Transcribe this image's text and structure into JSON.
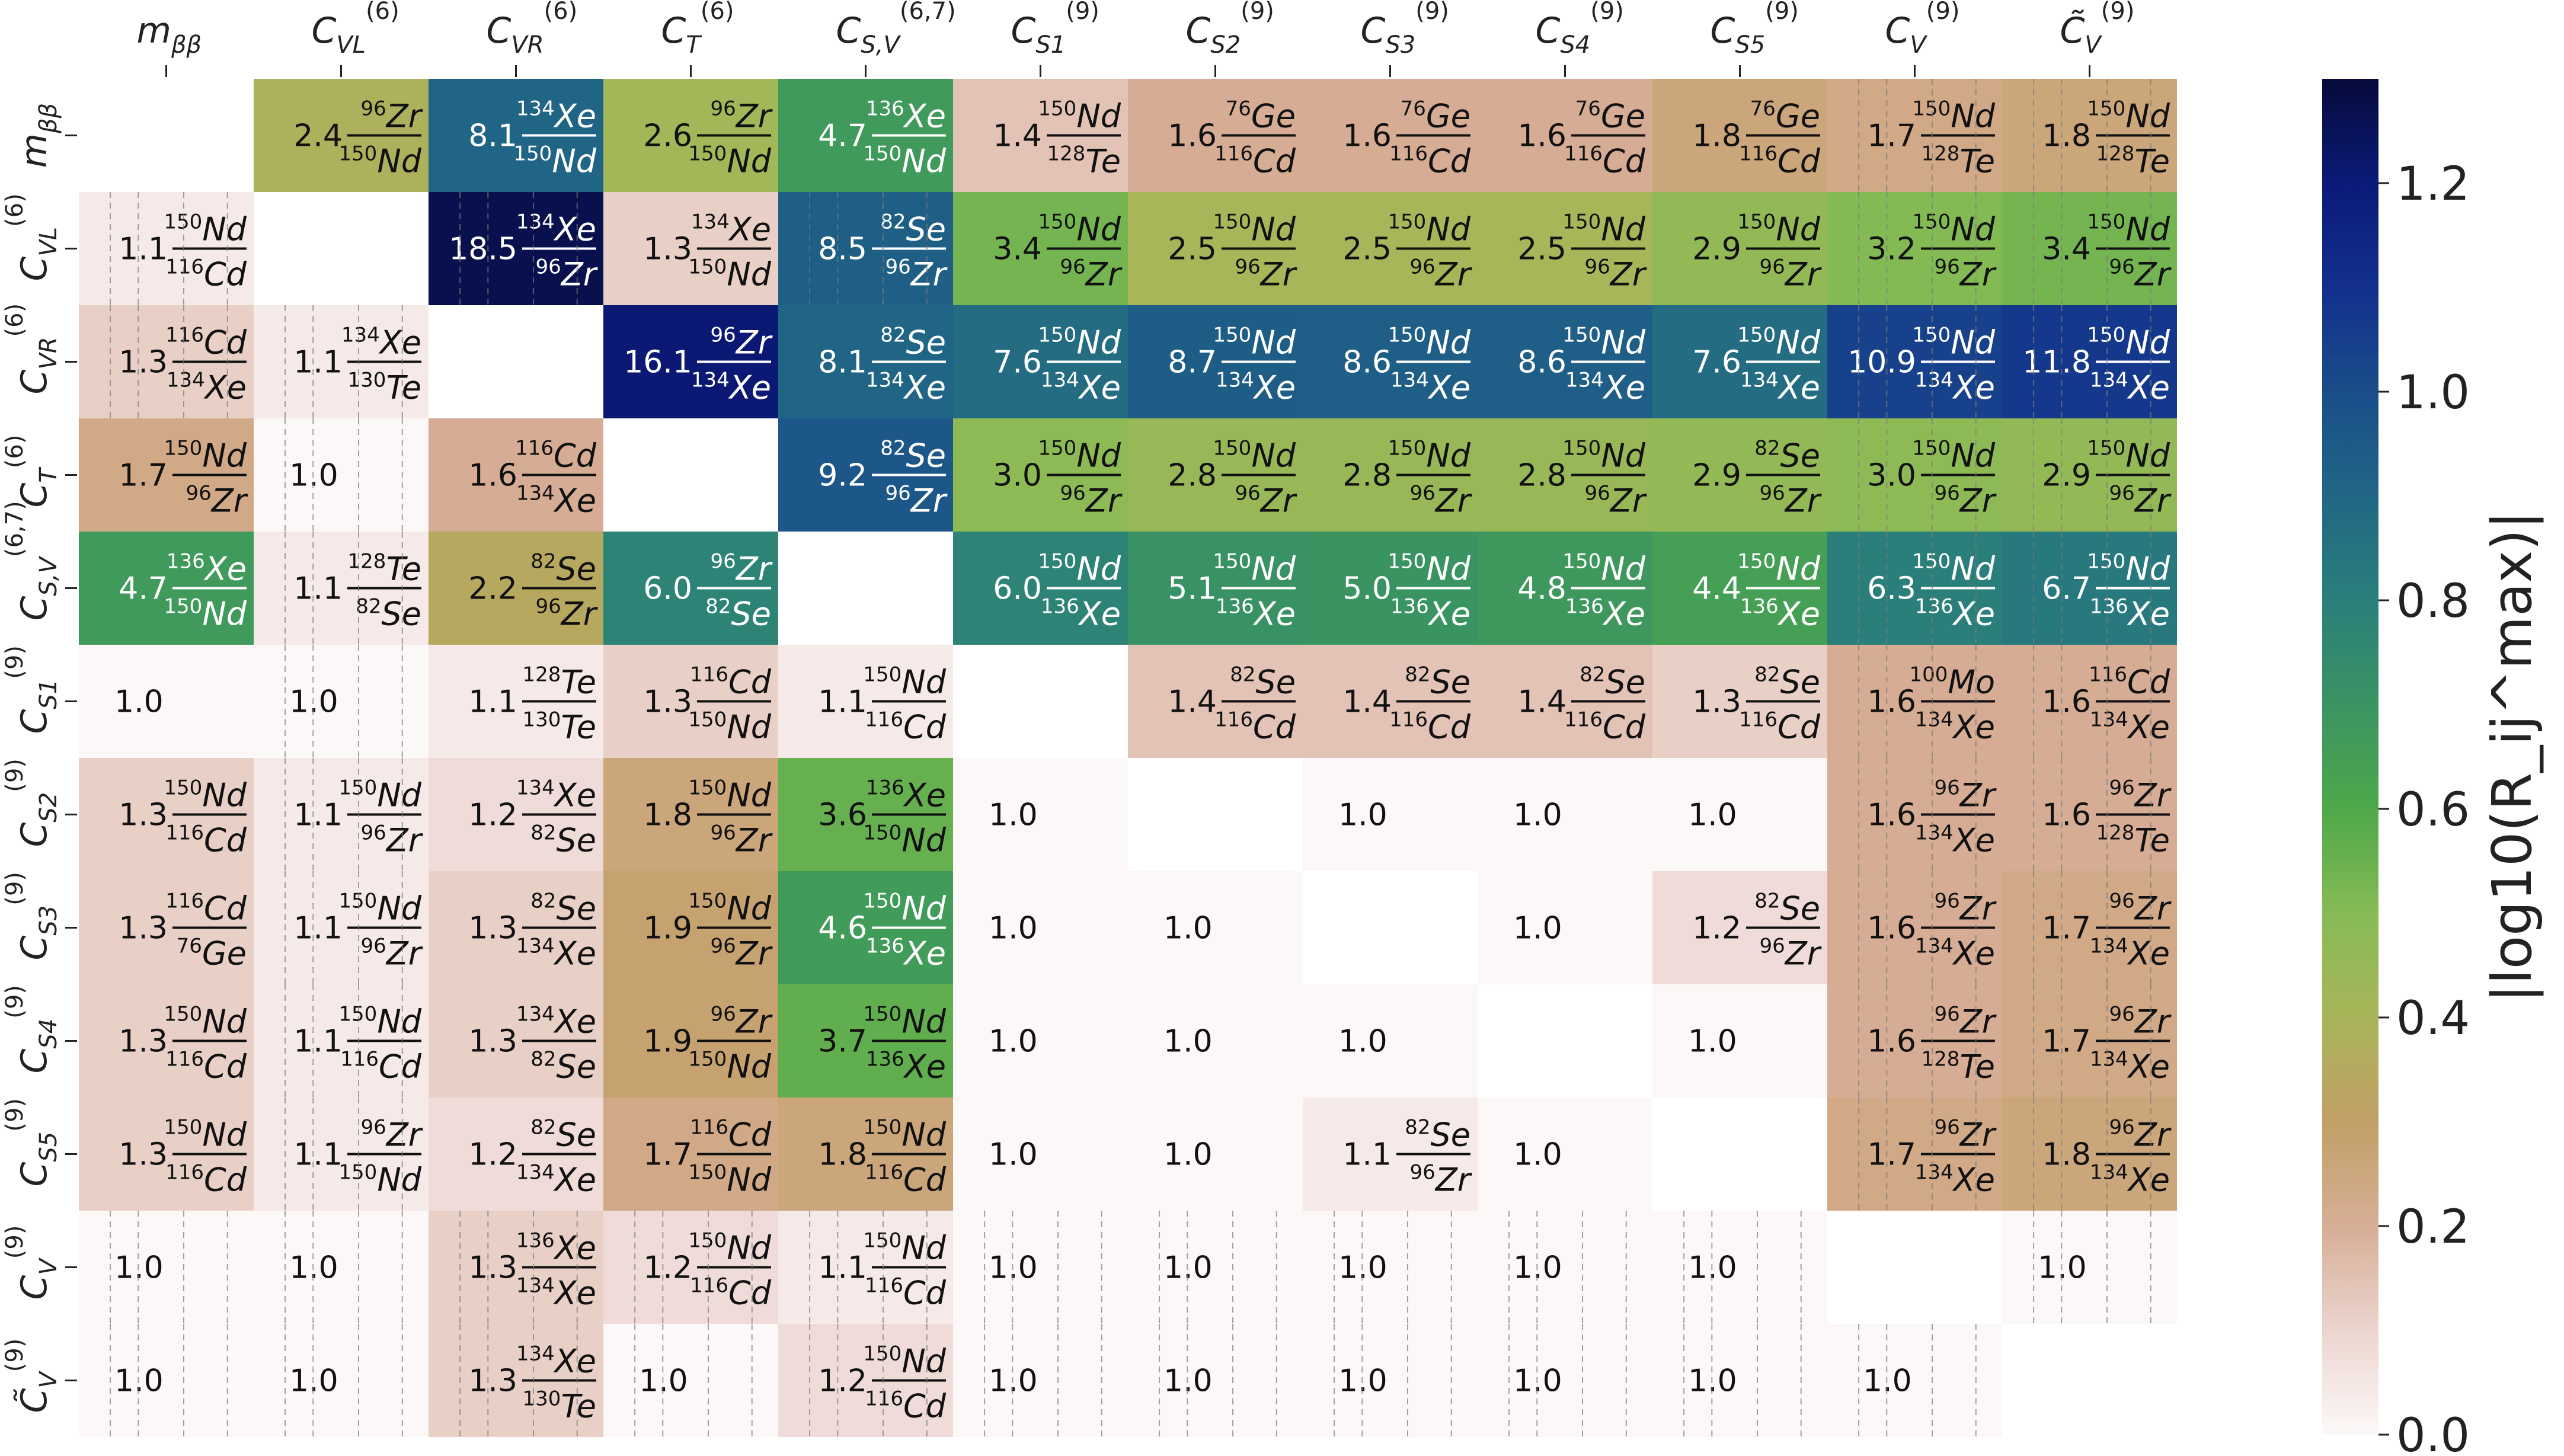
{
  "chart_data": {
    "type": "heatmap",
    "colorbar_label": "|log10(R_ij^max)|",
    "colorbar_range": [
      0.0,
      1.3
    ],
    "colorbar_ticks": [
      "0.0",
      "0.2",
      "0.4",
      "0.6",
      "0.8",
      "1.0",
      "1.2"
    ],
    "row_labels": [
      "m_ββ",
      "C_VL^(6)",
      "C_VR^(6)",
      "C_T^(6)",
      "C_S,V^(6,7)",
      "C_S1^(9)",
      "C_S2^(9)",
      "C_S3^(9)",
      "C_S4^(9)",
      "C_S5^(9)",
      "C_V^(9)",
      "C̃_V^(9)"
    ],
    "col_labels": [
      "m_ββ",
      "C_VL^(6)",
      "C_VR^(6)",
      "C_T^(6)",
      "C_S,V^(6,7)",
      "C_S1^(9)",
      "C_S2^(9)",
      "C_S3^(9)",
      "C_S4^(9)",
      "C_S5^(9)",
      "C_V^(9)",
      "C̃_V^(9)"
    ],
    "cells": [
      [
        null,
        [
          "2.4",
          "96Zr",
          "150Nd"
        ],
        [
          "8.1",
          "134Xe",
          "150Nd"
        ],
        [
          "2.6",
          "96Zr",
          "150Nd"
        ],
        [
          "4.7",
          "136Xe",
          "150Nd"
        ],
        [
          "1.4",
          "150Nd",
          "128Te"
        ],
        [
          "1.6",
          "76Ge",
          "116Cd"
        ],
        [
          "1.6",
          "76Ge",
          "116Cd"
        ],
        [
          "1.6",
          "76Ge",
          "116Cd"
        ],
        [
          "1.8",
          "76Ge",
          "116Cd"
        ],
        [
          "1.7",
          "150Nd",
          "128Te"
        ],
        [
          "1.8",
          "150Nd",
          "128Te"
        ]
      ],
      [
        [
          "1.1",
          "150Nd",
          "116Cd"
        ],
        null,
        [
          "18.5",
          "134Xe",
          "96Zr"
        ],
        [
          "1.3",
          "134Xe",
          "150Nd"
        ],
        [
          "8.5",
          "82Se",
          "96Zr"
        ],
        [
          "3.4",
          "150Nd",
          "96Zr"
        ],
        [
          "2.5",
          "150Nd",
          "96Zr"
        ],
        [
          "2.5",
          "150Nd",
          "96Zr"
        ],
        [
          "2.5",
          "150Nd",
          "96Zr"
        ],
        [
          "2.9",
          "150Nd",
          "96Zr"
        ],
        [
          "3.2",
          "150Nd",
          "96Zr"
        ],
        [
          "3.4",
          "150Nd",
          "96Zr"
        ]
      ],
      [
        [
          "1.3",
          "116Cd",
          "134Xe"
        ],
        [
          "1.1",
          "134Xe",
          "130Te"
        ],
        null,
        [
          "16.1",
          "96Zr",
          "134Xe"
        ],
        [
          "8.1",
          "82Se",
          "134Xe"
        ],
        [
          "7.6",
          "150Nd",
          "134Xe"
        ],
        [
          "8.7",
          "150Nd",
          "134Xe"
        ],
        [
          "8.6",
          "150Nd",
          "134Xe"
        ],
        [
          "8.6",
          "150Nd",
          "134Xe"
        ],
        [
          "7.6",
          "150Nd",
          "134Xe"
        ],
        [
          "10.9",
          "150Nd",
          "134Xe"
        ],
        [
          "11.8",
          "150Nd",
          "134Xe"
        ]
      ],
      [
        [
          "1.7",
          "150Nd",
          "96Zr"
        ],
        [
          "1.0"
        ],
        [
          "1.6",
          "116Cd",
          "134Xe"
        ],
        null,
        [
          "9.2",
          "82Se",
          "96Zr"
        ],
        [
          "3.0",
          "150Nd",
          "96Zr"
        ],
        [
          "2.8",
          "150Nd",
          "96Zr"
        ],
        [
          "2.8",
          "150Nd",
          "96Zr"
        ],
        [
          "2.8",
          "150Nd",
          "96Zr"
        ],
        [
          "2.9",
          "82Se",
          "96Zr"
        ],
        [
          "3.0",
          "150Nd",
          "96Zr"
        ],
        [
          "2.9",
          "150Nd",
          "96Zr"
        ]
      ],
      [
        [
          "4.7",
          "136Xe",
          "150Nd"
        ],
        [
          "1.1",
          "128Te",
          "82Se"
        ],
        [
          "2.2",
          "82Se",
          "96Zr"
        ],
        [
          "6.0",
          "96Zr",
          "82Se"
        ],
        null,
        [
          "6.0",
          "150Nd",
          "136Xe"
        ],
        [
          "5.1",
          "150Nd",
          "136Xe"
        ],
        [
          "5.0",
          "150Nd",
          "136Xe"
        ],
        [
          "4.8",
          "150Nd",
          "136Xe"
        ],
        [
          "4.4",
          "150Nd",
          "136Xe"
        ],
        [
          "6.3",
          "150Nd",
          "136Xe"
        ],
        [
          "6.7",
          "150Nd",
          "136Xe"
        ]
      ],
      [
        [
          "1.0"
        ],
        [
          "1.0"
        ],
        [
          "1.1",
          "128Te",
          "130Te"
        ],
        [
          "1.3",
          "116Cd",
          "150Nd"
        ],
        [
          "1.1",
          "150Nd",
          "116Cd"
        ],
        null,
        [
          "1.4",
          "82Se",
          "116Cd"
        ],
        [
          "1.4",
          "82Se",
          "116Cd"
        ],
        [
          "1.4",
          "82Se",
          "116Cd"
        ],
        [
          "1.3",
          "82Se",
          "116Cd"
        ],
        [
          "1.6",
          "100Mo",
          "134Xe"
        ],
        [
          "1.6",
          "116Cd",
          "134Xe"
        ]
      ],
      [
        [
          "1.3",
          "150Nd",
          "116Cd"
        ],
        [
          "1.1",
          "150Nd",
          "96Zr"
        ],
        [
          "1.2",
          "134Xe",
          "82Se"
        ],
        [
          "1.8",
          "150Nd",
          "96Zr"
        ],
        [
          "3.6",
          "136Xe",
          "150Nd"
        ],
        [
          "1.0"
        ],
        null,
        [
          "1.0"
        ],
        [
          "1.0"
        ],
        [
          "1.0"
        ],
        [
          "1.6",
          "96Zr",
          "134Xe"
        ],
        [
          "1.6",
          "96Zr",
          "128Te"
        ]
      ],
      [
        [
          "1.3",
          "116Cd",
          "76Ge"
        ],
        [
          "1.1",
          "150Nd",
          "96Zr"
        ],
        [
          "1.3",
          "82Se",
          "134Xe"
        ],
        [
          "1.9",
          "150Nd",
          "96Zr"
        ],
        [
          "4.6",
          "150Nd",
          "136Xe"
        ],
        [
          "1.0"
        ],
        [
          "1.0"
        ],
        null,
        [
          "1.0"
        ],
        [
          "1.2",
          "82Se",
          "96Zr"
        ],
        [
          "1.6",
          "96Zr",
          "134Xe"
        ],
        [
          "1.7",
          "96Zr",
          "134Xe"
        ]
      ],
      [
        [
          "1.3",
          "150Nd",
          "116Cd"
        ],
        [
          "1.1",
          "150Nd",
          "116Cd"
        ],
        [
          "1.3",
          "134Xe",
          "82Se"
        ],
        [
          "1.9",
          "96Zr",
          "150Nd"
        ],
        [
          "3.7",
          "150Nd",
          "136Xe"
        ],
        [
          "1.0"
        ],
        [
          "1.0"
        ],
        [
          "1.0"
        ],
        null,
        [
          "1.0"
        ],
        [
          "1.6",
          "96Zr",
          "128Te"
        ],
        [
          "1.7",
          "96Zr",
          "134Xe"
        ]
      ],
      [
        [
          "1.3",
          "150Nd",
          "116Cd"
        ],
        [
          "1.1",
          "96Zr",
          "150Nd"
        ],
        [
          "1.2",
          "82Se",
          "134Xe"
        ],
        [
          "1.7",
          "116Cd",
          "150Nd"
        ],
        [
          "1.8",
          "150Nd",
          "116Cd"
        ],
        [
          "1.0"
        ],
        [
          "1.0"
        ],
        [
          "1.1",
          "82Se",
          "96Zr"
        ],
        [
          "1.0"
        ],
        null,
        [
          "1.7",
          "96Zr",
          "134Xe"
        ],
        [
          "1.8",
          "96Zr",
          "134Xe"
        ]
      ],
      [
        [
          "1.0"
        ],
        [
          "1.0"
        ],
        [
          "1.3",
          "136Xe",
          "134Xe"
        ],
        [
          "1.2",
          "150Nd",
          "116Cd"
        ],
        [
          "1.1",
          "150Nd",
          "116Cd"
        ],
        [
          "1.0"
        ],
        [
          "1.0"
        ],
        [
          "1.0"
        ],
        [
          "1.0"
        ],
        [
          "1.0"
        ],
        null,
        [
          "1.0"
        ]
      ],
      [
        [
          "1.0"
        ],
        [
          "1.0"
        ],
        [
          "1.3",
          "134Xe",
          "130Te"
        ],
        [
          "1.0"
        ],
        [
          "1.2",
          "150Nd",
          "116Cd"
        ],
        [
          "1.0"
        ],
        [
          "1.0"
        ],
        [
          "1.0"
        ],
        [
          "1.0"
        ],
        [
          "1.0"
        ],
        [
          "1.0"
        ],
        null
      ]
    ]
  }
}
